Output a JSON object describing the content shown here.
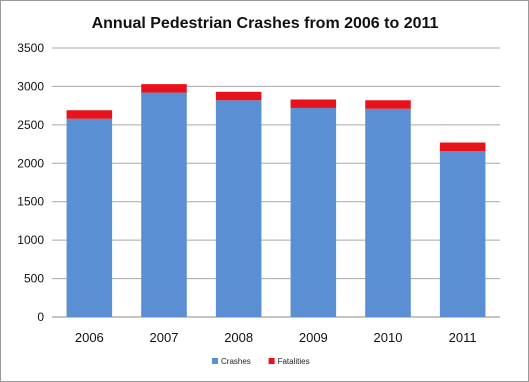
{
  "chart_data": {
    "type": "bar",
    "stacked": true,
    "title": "Annual Pedestrian Crashes from 2006 to 2011",
    "xlabel": "",
    "ylabel": "",
    "categories": [
      "2006",
      "2007",
      "2008",
      "2009",
      "2010",
      "2011"
    ],
    "series": [
      {
        "name": "Crashes",
        "color": "#5B8FD4",
        "values": [
          2580,
          2920,
          2820,
          2720,
          2710,
          2160
        ]
      },
      {
        "name": "Fatalities",
        "color": "#E8121A",
        "values": [
          110,
          110,
          110,
          110,
          110,
          110
        ]
      }
    ],
    "ylim": [
      0,
      3500
    ],
    "yticks": [
      "0",
      "500",
      "1000",
      "1500",
      "2000",
      "2500",
      "3000",
      "3500"
    ],
    "grid": true,
    "legend_position": "bottom-center"
  }
}
